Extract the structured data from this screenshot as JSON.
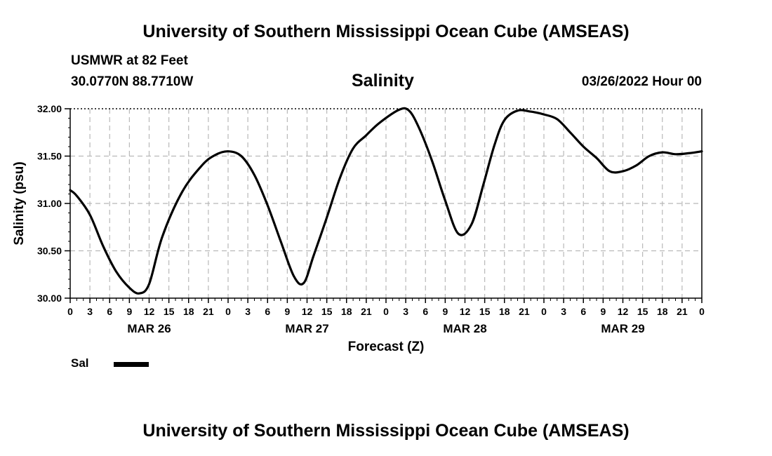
{
  "header": {
    "main_title": "University of Southern Mississippi Ocean Cube (AMSEAS)",
    "station": "USMWR at 82 Feet",
    "location": "30.0770N  88.7710W",
    "chart_title": "Salinity",
    "date": "03/26/2022 Hour 00"
  },
  "footer": {
    "main_title": "University of Southern Mississippi Ocean Cube (AMSEAS)"
  },
  "legend": {
    "label": "Sal"
  },
  "chart_data": {
    "type": "line",
    "title": "Salinity",
    "xlabel": "Forecast (Z)",
    "ylabel": "Salinity (psu)",
    "xlim": [
      0,
      96
    ],
    "ylim": [
      30.0,
      32.0
    ],
    "yticks": [
      30.0,
      30.5,
      31.0,
      31.5,
      32.0
    ],
    "ytick_labels": [
      "30.00",
      "30.50",
      "31.00",
      "31.50",
      "32.00"
    ],
    "xtick_hours": [
      0,
      3,
      6,
      9,
      12,
      15,
      18,
      21,
      24,
      27,
      30,
      33,
      36,
      39,
      42,
      45,
      48,
      51,
      54,
      57,
      60,
      63,
      66,
      69,
      72,
      75,
      78,
      81,
      84,
      87,
      90,
      93,
      96
    ],
    "xtick_labels": [
      "0",
      "3",
      "6",
      "9",
      "12",
      "15",
      "18",
      "21",
      "0",
      "3",
      "6",
      "9",
      "12",
      "15",
      "18",
      "21",
      "0",
      "3",
      "6",
      "9",
      "12",
      "15",
      "18",
      "21",
      "0",
      "3",
      "6",
      "9",
      "12",
      "15",
      "18",
      "21",
      "0"
    ],
    "date_labels": [
      {
        "hour": 12,
        "label": "MAR 26"
      },
      {
        "hour": 36,
        "label": "MAR 27"
      },
      {
        "hour": 60,
        "label": "MAR 28"
      },
      {
        "hour": 84,
        "label": "MAR 29"
      }
    ],
    "grid": true,
    "series": [
      {
        "name": "Sal",
        "color": "#000000",
        "x": [
          0,
          1,
          3,
          5,
          7,
          9,
          10.5,
          12,
          14,
          17,
          20,
          22,
          24,
          26,
          28,
          30,
          32,
          34,
          35.5,
          37,
          39,
          41,
          43,
          45,
          47,
          50,
          51.5,
          53,
          55,
          57,
          59,
          61,
          62.8,
          64.5,
          66,
          68,
          70,
          72,
          74,
          76,
          78,
          80,
          82,
          84,
          86,
          88,
          90,
          92,
          94,
          96
        ],
        "y": [
          31.14,
          31.08,
          30.88,
          30.55,
          30.28,
          30.11,
          30.05,
          30.15,
          30.65,
          31.12,
          31.4,
          31.51,
          31.55,
          31.5,
          31.3,
          30.98,
          30.6,
          30.23,
          30.16,
          30.45,
          30.85,
          31.27,
          31.58,
          31.72,
          31.85,
          31.99,
          31.98,
          31.8,
          31.45,
          31.03,
          30.68,
          30.78,
          31.2,
          31.62,
          31.88,
          31.98,
          31.97,
          31.94,
          31.89,
          31.75,
          31.6,
          31.48,
          31.34,
          31.34,
          31.4,
          31.5,
          31.54,
          31.52,
          31.53,
          31.55
        ]
      }
    ]
  }
}
